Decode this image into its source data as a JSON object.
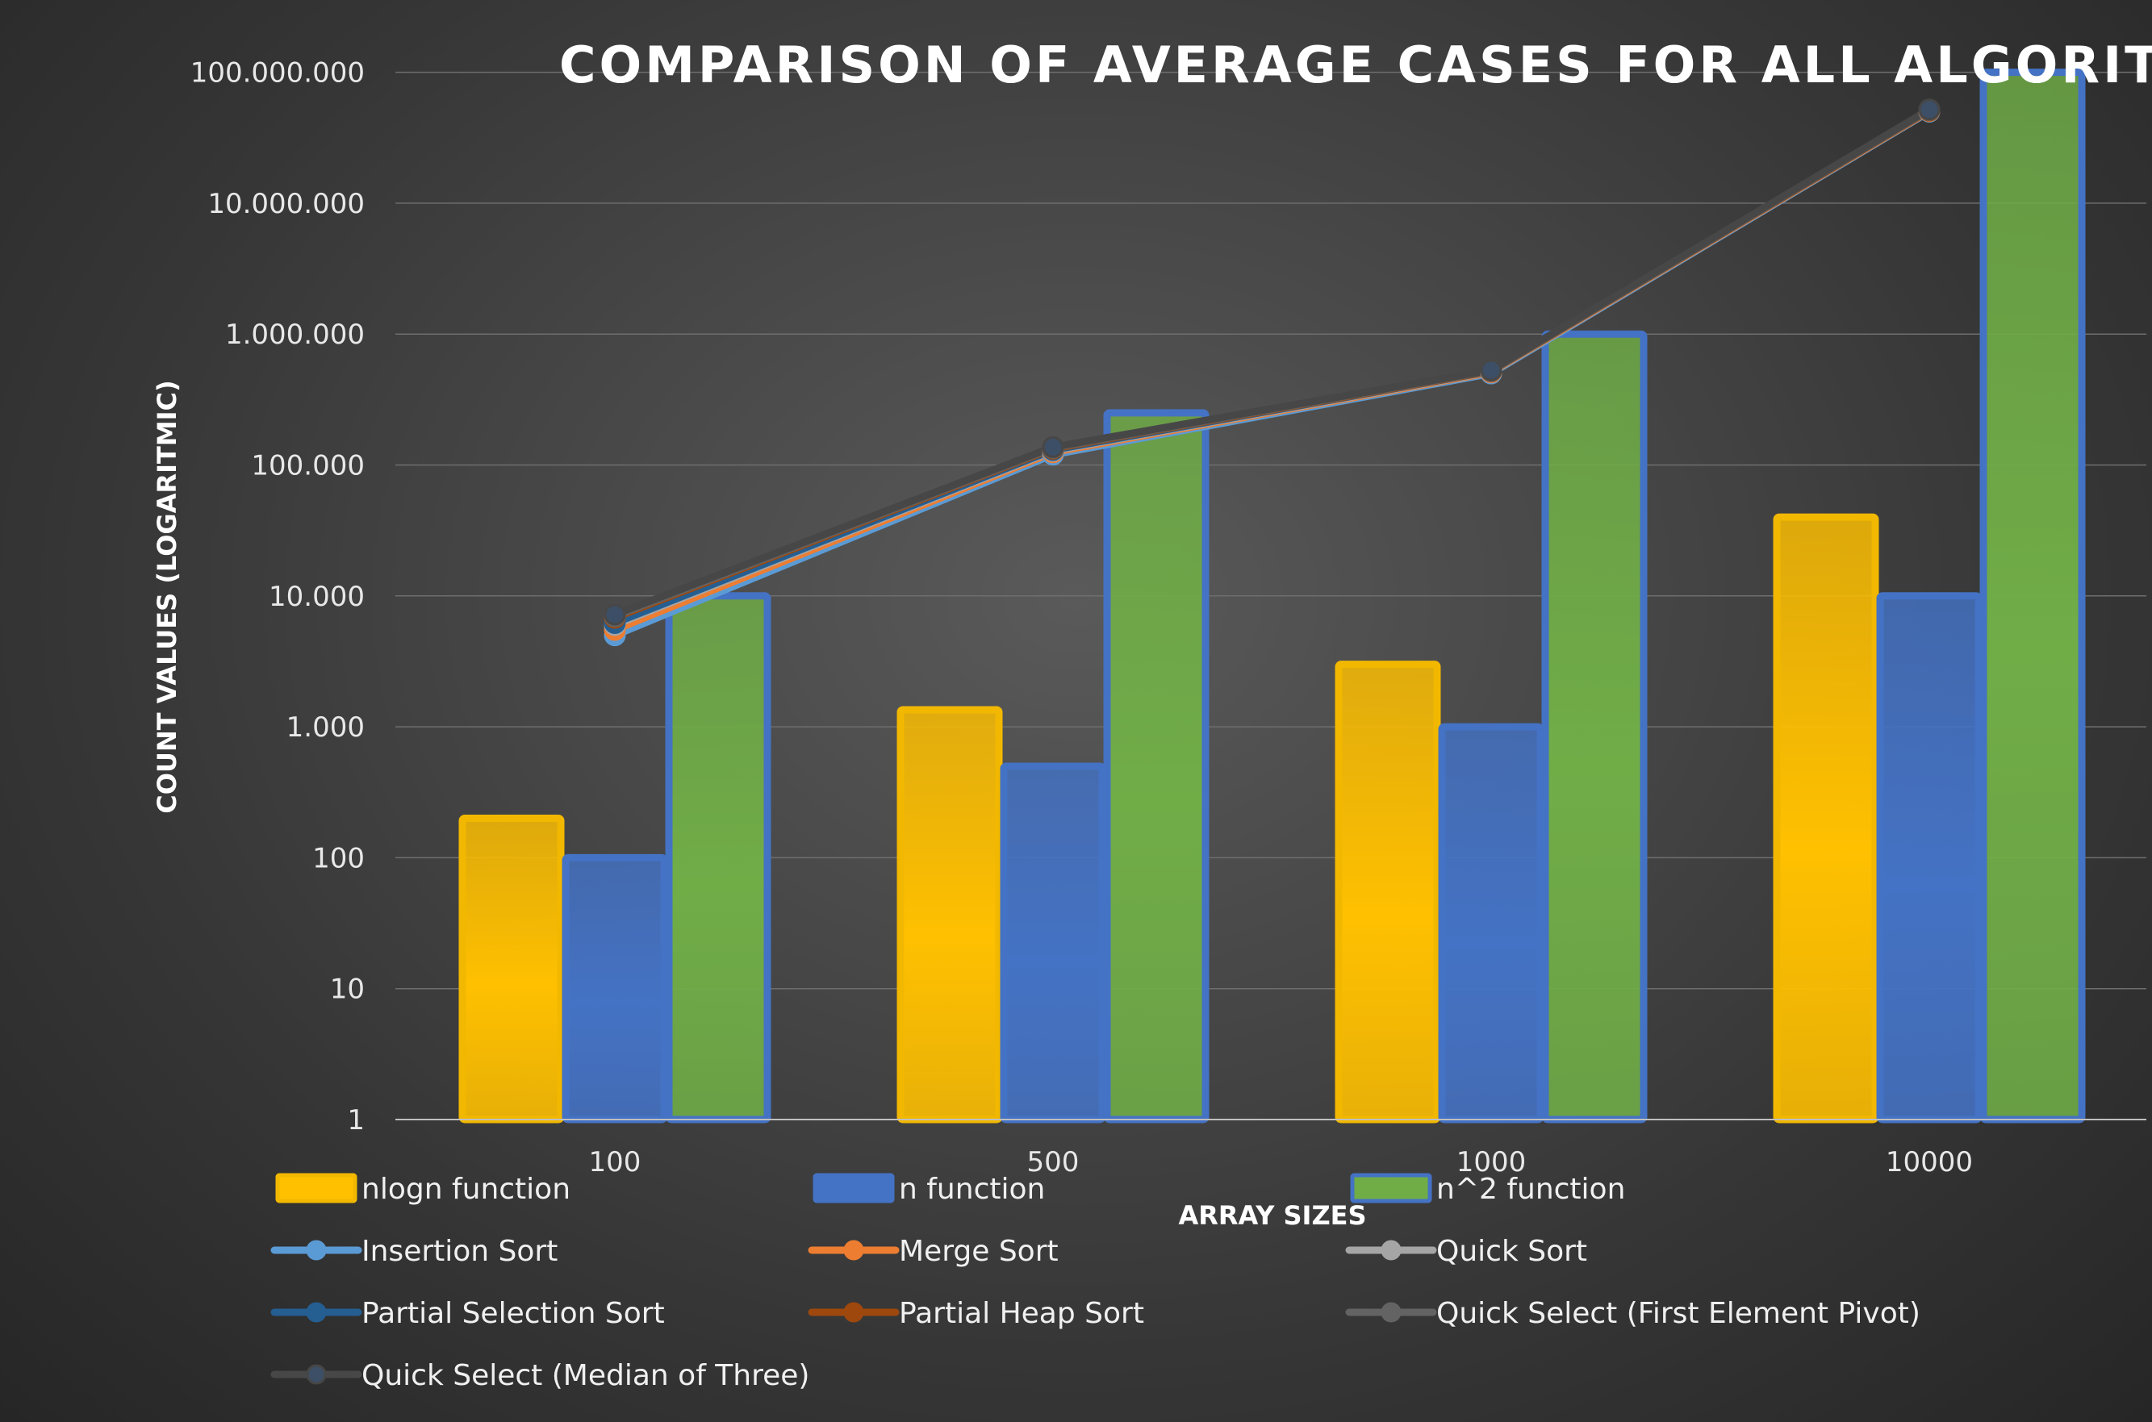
{
  "chart_data": {
    "type": "bar",
    "title": "COMPARISON OF AVERAGE CASES FOR ALL ALGORITHIMS",
    "xlabel": "ARRAY SIZES",
    "ylabel": "COUNT VALUES (LOGARITMIC)",
    "y_scale": "log",
    "ylim": [
      1,
      100000000
    ],
    "y_ticks": [
      1,
      10,
      100,
      1000,
      10000,
      100000,
      1000000,
      10000000,
      100000000
    ],
    "y_tick_labels": [
      "1",
      "10",
      "100",
      "1.000",
      "10.000",
      "100.000",
      "1.000.000",
      "10.000.000",
      "100.000.000"
    ],
    "categories": [
      "100",
      "500",
      "1000",
      "10000"
    ],
    "grid": true,
    "legend_position": "bottom",
    "bar_series": [
      {
        "name": "nlogn function",
        "values": [
          200,
          1350,
          3000,
          40000
        ],
        "color": "#ffc000",
        "border": "#f2b800"
      },
      {
        "name": "n function",
        "values": [
          100,
          500,
          1000,
          10000
        ],
        "color": "#4472c4",
        "border": "#4472c4"
      },
      {
        "name": "n^2 function",
        "values": [
          10000,
          250000,
          1000000,
          100000000
        ],
        "color": "#70ad47",
        "border": "#4472c4"
      }
    ],
    "line_series": [
      {
        "name": "Insertion Sort",
        "values": [
          5000,
          120000,
          500000,
          50000000
        ],
        "color": "#5b9bd5",
        "marker": "#5b9bd5"
      },
      {
        "name": "Merge Sort",
        "values": [
          5500,
          125000,
          510000,
          50500000
        ],
        "color": "#ed7d31",
        "marker": "#ed7d31"
      },
      {
        "name": "Quick Sort",
        "values": [
          6000,
          128000,
          515000,
          51000000
        ],
        "color": "#a5a5a5",
        "marker": "#a5a5a5"
      },
      {
        "name": "Partial Selection Sort",
        "values": [
          6200,
          130000,
          520000,
          51000000
        ],
        "color": "#255e91",
        "marker": "#255e91"
      },
      {
        "name": "Partial Heap Sort",
        "values": [
          6800,
          133000,
          520000,
          51000000
        ],
        "color": "#9e480e",
        "marker": "#9e480e"
      },
      {
        "name": "Quick Select (First Element Pivot)",
        "values": [
          7000,
          135000,
          525000,
          51500000
        ],
        "color": "#636363",
        "marker": "#636363"
      },
      {
        "name": "Quick Select (Median of Three)",
        "values": [
          7200,
          137000,
          530000,
          52000000
        ],
        "color": "#474747",
        "marker": "#3d4f66"
      }
    ]
  }
}
